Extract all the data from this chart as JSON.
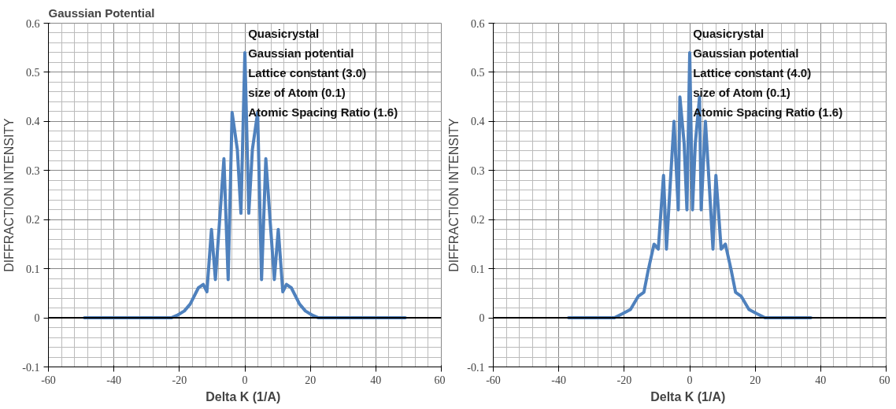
{
  "chart_data": [
    {
      "type": "line",
      "title": "Gaussian Potential",
      "xlabel": "Delta K  (1/A)",
      "ylabel": "DIFFRACTION INTENSITY",
      "annotations": [
        "Quasicrystal",
        "Gaussian potential",
        "Lattice constant (3.0)",
        "size of Atom (0.1)",
        "Atomic Spacing Ratio  (1.6)"
      ],
      "x": [
        -49,
        -22.5,
        -20.7,
        -18.5,
        -16.7,
        -14.2,
        -12.7,
        -11.6,
        -10.2,
        -9.0,
        -7.8,
        -6.4,
        -5.1,
        -3.9,
        -2.3,
        -1.2,
        0,
        1.2,
        2.3,
        3.9,
        5.1,
        6.4,
        7.8,
        9.0,
        10.2,
        11.6,
        12.7,
        14.2,
        16.7,
        18.5,
        20.7,
        22.5,
        49
      ],
      "series": [
        {
          "color": "#4f81bd",
          "values": [
            0,
            0,
            0.005,
            0.014,
            0.028,
            0.061,
            0.068,
            0.053,
            0.18,
            0.078,
            0.19,
            0.324,
            0.078,
            0.418,
            0.343,
            0.213,
            0.54,
            0.213,
            0.343,
            0.418,
            0.078,
            0.324,
            0.19,
            0.078,
            0.18,
            0.053,
            0.068,
            0.061,
            0.028,
            0.014,
            0.005,
            0,
            0
          ]
        }
      ],
      "xlim": [
        -60,
        60
      ],
      "ylim": [
        -0.1,
        0.6
      ],
      "xticks": [
        -60,
        -40,
        -20,
        0,
        20,
        40,
        60
      ],
      "yticks": [
        -0.1,
        0,
        0.1,
        0.2,
        0.3,
        0.4,
        0.5,
        0.6
      ],
      "ref_lines": [
        {
          "axis": "y",
          "value": 0,
          "color": "#000000"
        }
      ],
      "grid": true,
      "line_style": "solid"
    },
    {
      "type": "line",
      "xlabel": "Delta K  (1/A)",
      "ylabel": "DIFFRACTION INTENSITY",
      "annotations": [
        "Quasicrystal",
        "Gaussian potential",
        "Lattice constant (4.0)",
        "size of Atom (0.1)",
        "Atomic Spacing Ratio  (1.6)"
      ],
      "x": [
        -37,
        -23,
        -20.6,
        -18.1,
        -15.7,
        -14.0,
        -12.7,
        -10.9,
        -9.6,
        -8.0,
        -7.1,
        -6.1,
        -4.8,
        -3.5,
        -3.0,
        -1.7,
        -0.85,
        0,
        0.85,
        1.7,
        3.0,
        3.5,
        4.8,
        6.1,
        7.1,
        8.0,
        9.6,
        10.9,
        12.7,
        14.0,
        15.7,
        18.1,
        20.6,
        23,
        37
      ],
      "series": [
        {
          "color": "#4f81bd",
          "values": [
            0,
            0,
            0.008,
            0.017,
            0.044,
            0.052,
            0.096,
            0.15,
            0.14,
            0.29,
            0.14,
            0.256,
            0.4,
            0.22,
            0.45,
            0.355,
            0.22,
            0.54,
            0.22,
            0.355,
            0.45,
            0.22,
            0.4,
            0.256,
            0.14,
            0.29,
            0.14,
            0.15,
            0.096,
            0.052,
            0.044,
            0.017,
            0.008,
            0,
            0
          ]
        }
      ],
      "xlim": [
        -60,
        60
      ],
      "ylim": [
        -0.1,
        0.6
      ],
      "xticks": [
        -60,
        -40,
        -20,
        0,
        20,
        40,
        60
      ],
      "yticks": [
        -0.1,
        0,
        0.1,
        0.2,
        0.3,
        0.4,
        0.5,
        0.6
      ],
      "ref_lines": [
        {
          "axis": "y",
          "value": 0,
          "color": "#000000"
        }
      ],
      "grid": true,
      "line_style": "solid"
    }
  ]
}
